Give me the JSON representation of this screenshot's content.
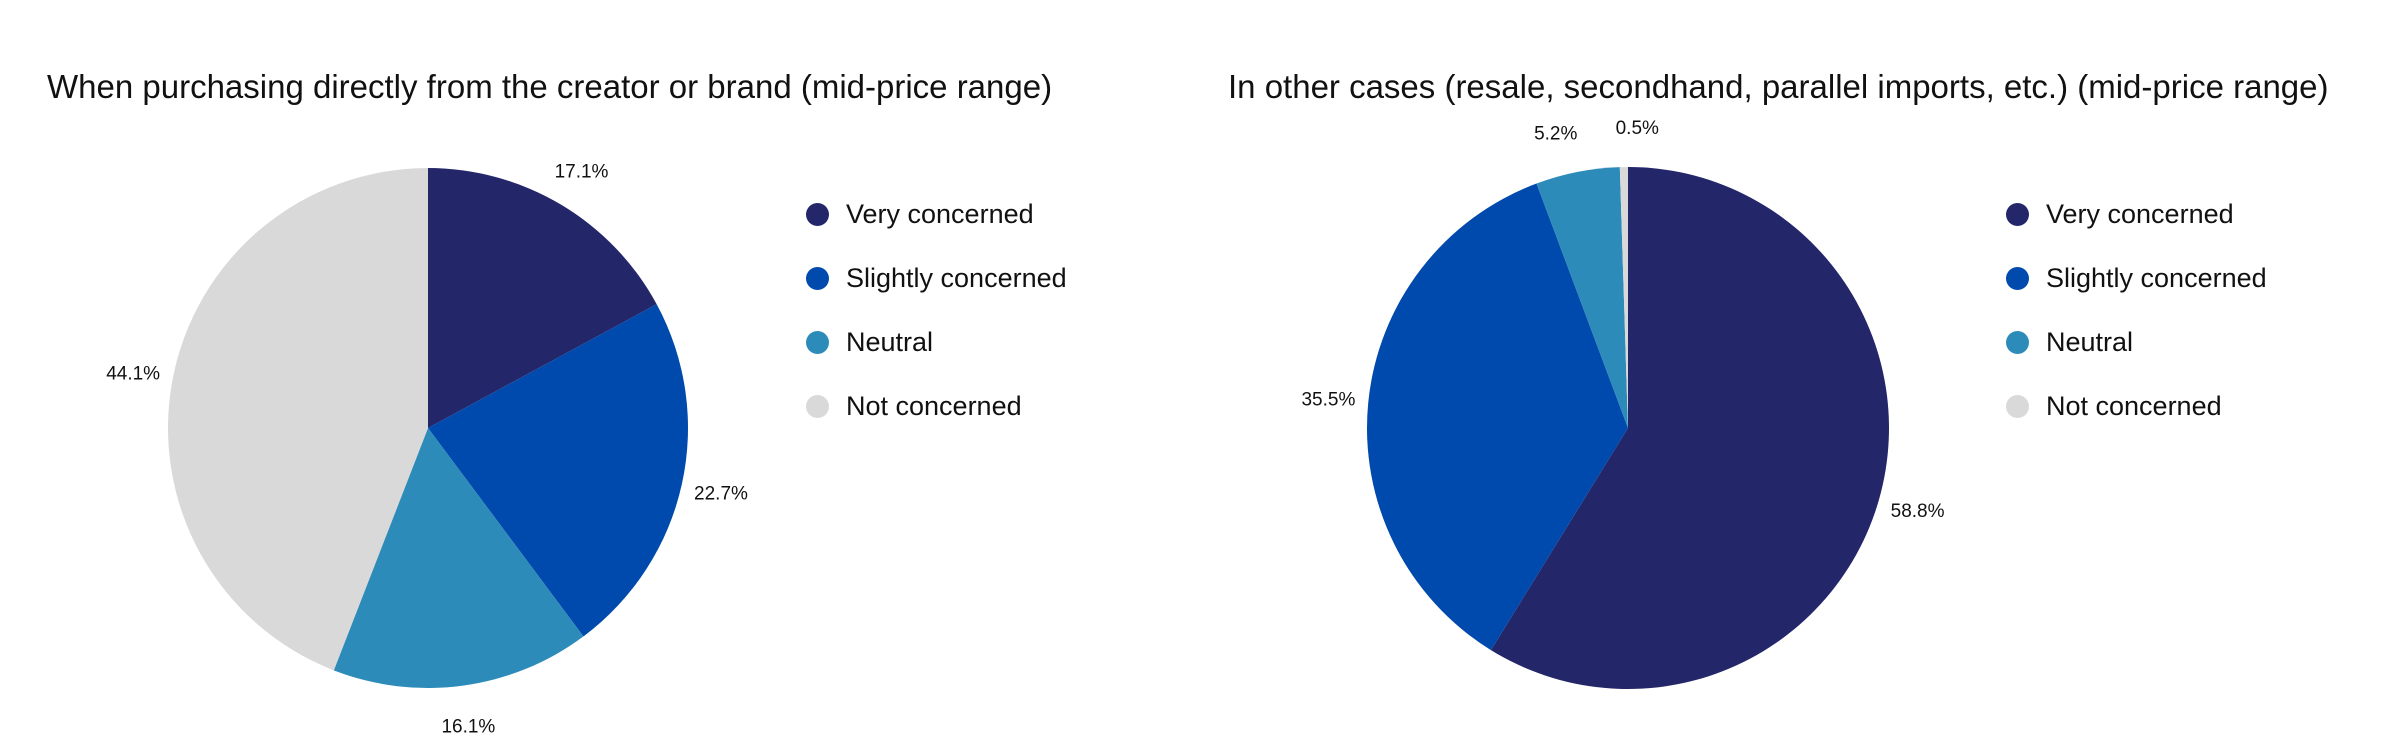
{
  "colors": {
    "very": "#24266A",
    "slightly": "#004AAD",
    "neutral": "#2D8BBA",
    "not": "#D9D9D9"
  },
  "legend": [
    "Very concerned",
    "Slightly concerned",
    "Neutral",
    "Not concerned"
  ],
  "chart_data": [
    {
      "type": "pie",
      "title": "When purchasing directly from the creator or brand (mid-price range)",
      "categories": [
        "Very concerned",
        "Slightly concerned",
        "Neutral",
        "Not concerned"
      ],
      "values": [
        17.1,
        22.7,
        16.1,
        44.1
      ],
      "labels": [
        "17.1%",
        "22.7%",
        "16.1%",
        "44.1%"
      ],
      "legend_position": "right",
      "start_angle": "12 o'clock, clockwise"
    },
    {
      "type": "pie",
      "title": "In other cases (resale, secondhand, parallel imports, etc.) (mid-price range)",
      "categories": [
        "Very concerned",
        "Slightly concerned",
        "Neutral",
        "Not concerned"
      ],
      "values": [
        58.8,
        35.5,
        5.2,
        0.5
      ],
      "labels": [
        "58.8%",
        "35.5%",
        "5.2%",
        "0.5%"
      ],
      "legend_position": "right",
      "start_angle": "12 o'clock, clockwise"
    }
  ]
}
